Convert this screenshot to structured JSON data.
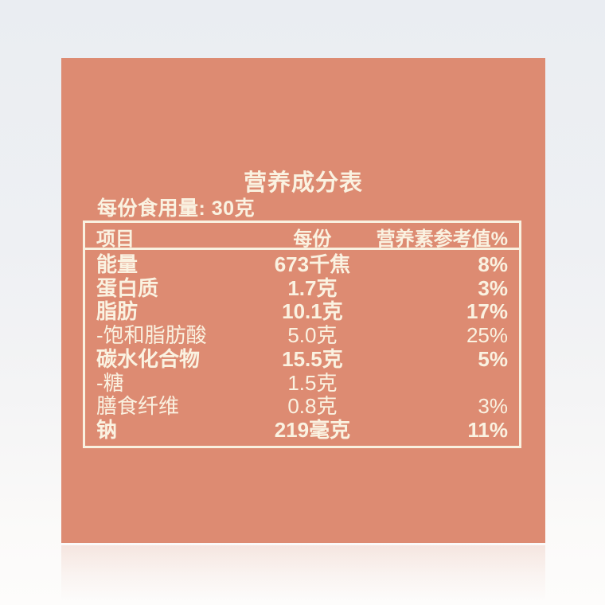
{
  "panel": {
    "title": "营养成分表",
    "serving_line": "每份食用量: 30克",
    "table": {
      "headers": [
        "项目",
        "每份",
        "营养素参考值%"
      ],
      "rows": [
        {
          "name": "能量",
          "amount": "673千焦",
          "nrv": "8%",
          "bold": true
        },
        {
          "name": "蛋白质",
          "amount": "1.7克",
          "nrv": "3%",
          "bold": true
        },
        {
          "name": "脂肪",
          "amount": "10.1克",
          "nrv": "17%",
          "bold": true
        },
        {
          "name": "-饱和脂肪酸",
          "amount": "5.0克",
          "nrv": "25%",
          "bold": false
        },
        {
          "name": "碳水化合物",
          "amount": "15.5克",
          "nrv": "5%",
          "bold": true
        },
        {
          "name": "-糖",
          "amount": "1.5克",
          "nrv": "",
          "bold": false
        },
        {
          "name": "膳食纤维",
          "amount": "0.8克",
          "nrv": "3%",
          "bold": false
        },
        {
          "name": "钠",
          "amount": "219毫克",
          "nrv": "11%",
          "bold": true
        }
      ]
    },
    "colors": {
      "panel_background": "#dd8b72",
      "label_text": "#faf2e1",
      "table_border": "#f9f1e0"
    }
  }
}
